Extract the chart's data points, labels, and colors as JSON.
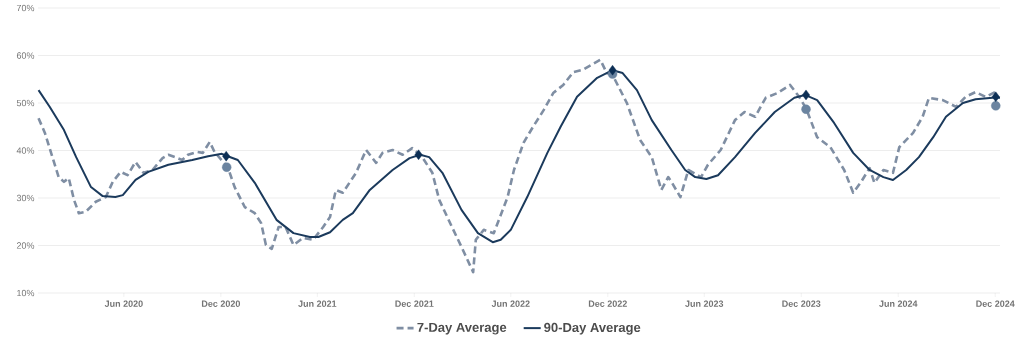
{
  "chart_data": {
    "type": "line",
    "xlim": [
      "2019-12-22",
      "2024-12-10"
    ],
    "xticks": [
      {
        "value": "2020-06-01",
        "label": "Jun 2020"
      },
      {
        "value": "2020-12-01",
        "label": "Dec 2020"
      },
      {
        "value": "2021-06-01",
        "label": "Jun 2021"
      },
      {
        "value": "2021-12-01",
        "label": "Dec 2021"
      },
      {
        "value": "2022-06-01",
        "label": "Jun 2022"
      },
      {
        "value": "2022-12-01",
        "label": "Dec 2022"
      },
      {
        "value": "2023-06-01",
        "label": "Jun 2023"
      },
      {
        "value": "2023-12-01",
        "label": "Dec 2023"
      },
      {
        "value": "2024-06-01",
        "label": "Jun 2024"
      },
      {
        "value": "2024-12-01",
        "label": "Dec 2024"
      }
    ],
    "ylim": [
      10,
      70
    ],
    "yticks": [
      {
        "value": 10,
        "label": "10%"
      },
      {
        "value": 20,
        "label": "20%"
      },
      {
        "value": 30,
        "label": "30%"
      },
      {
        "value": 40,
        "label": "40%"
      },
      {
        "value": 50,
        "label": "50%"
      },
      {
        "value": 60,
        "label": "60%"
      },
      {
        "value": 70,
        "label": "70%"
      }
    ],
    "grid": "y",
    "legend": "bottom",
    "series": [
      {
        "name": "7-Day Average",
        "color": "#7f8ea3",
        "line_style": "dashed",
        "marker": "none",
        "x": [
          "2019-12-23",
          "2020-01-04",
          "2020-01-30",
          "2020-02-09",
          "2020-02-18",
          "2020-02-28",
          "2020-03-08",
          "2020-03-21",
          "2020-04-09",
          "2020-04-28",
          "2020-05-11",
          "2020-05-26",
          "2020-06-08",
          "2020-06-23",
          "2020-07-08",
          "2020-07-25",
          "2020-08-13",
          "2020-08-24",
          "2020-09-06",
          "2020-09-19",
          "2020-09-30",
          "2020-10-17",
          "2020-10-28",
          "2020-11-10",
          "2020-11-19",
          "2020-12-14",
          "2020-12-27",
          "2021-01-15",
          "2021-02-03",
          "2021-02-15",
          "2021-02-24",
          "2021-03-07",
          "2021-03-20",
          "2021-04-02",
          "2021-04-17",
          "2021-05-05",
          "2021-05-24",
          "2021-06-12",
          "2021-06-25",
          "2021-07-06",
          "2021-07-19",
          "2021-08-13",
          "2021-09-01",
          "2021-09-20",
          "2021-10-02",
          "2021-10-21",
          "2021-11-09",
          "2021-11-27",
          "2021-12-16",
          "2022-01-04",
          "2022-01-17",
          "2022-02-10",
          "2022-02-28",
          "2022-03-22",
          "2022-03-27",
          "2022-04-11",
          "2022-04-30",
          "2022-05-26",
          "2022-06-07",
          "2022-06-25",
          "2022-07-13",
          "2022-08-02",
          "2022-08-20",
          "2022-09-08",
          "2022-09-27",
          "2022-10-15",
          "2022-11-17",
          "2022-11-29",
          "2022-12-10",
          "2023-01-06",
          "2023-01-31",
          "2023-02-22",
          "2023-03-12",
          "2023-03-25",
          "2023-03-31",
          "2023-04-17",
          "2023-05-02",
          "2023-05-26",
          "2023-06-08",
          "2023-07-02",
          "2023-07-29",
          "2023-08-16",
          "2023-09-05",
          "2023-09-25",
          "2023-10-17",
          "2023-11-10",
          "2023-11-27",
          "2023-12-10",
          "2023-12-31",
          "2024-01-25",
          "2024-02-20",
          "2024-03-08",
          "2024-03-23",
          "2024-04-08",
          "2024-04-17",
          "2024-05-04",
          "2024-05-22",
          "2024-06-03",
          "2024-06-29",
          "2024-07-17",
          "2024-07-29",
          "2024-08-24",
          "2024-09-18",
          "2024-10-06",
          "2024-10-25",
          "2024-11-13",
          "2024-12-01"
        ],
        "values": [
          46.8,
          43.7,
          34.4,
          33.4,
          34.2,
          29.6,
          26.8,
          27.1,
          29.2,
          30.2,
          33.4,
          35.5,
          34.8,
          37.6,
          35.3,
          35.9,
          38.4,
          39.1,
          38.6,
          38.0,
          39.1,
          39.7,
          39.5,
          41.8,
          39.7,
          36.5,
          32.3,
          28.1,
          26.8,
          24.7,
          20.1,
          19.3,
          23.9,
          23.9,
          20.1,
          21.6,
          21.2,
          23.9,
          26.0,
          31.7,
          31.1,
          35.3,
          40.1,
          37.4,
          39.5,
          40.1,
          39.1,
          40.5,
          38.6,
          35.3,
          29.6,
          23.9,
          19.7,
          14.4,
          21.2,
          23.3,
          22.6,
          30.2,
          35.9,
          41.6,
          45.0,
          48.5,
          52.1,
          53.8,
          56.5,
          57.0,
          59.1,
          56.3,
          55.9,
          50.0,
          42.2,
          38.6,
          31.7,
          34.4,
          33.4,
          30.2,
          35.9,
          34.4,
          37.0,
          40.1,
          46.4,
          48.1,
          47.1,
          51.1,
          52.1,
          53.8,
          51.3,
          48.9,
          42.8,
          40.7,
          35.9,
          31.1,
          33.4,
          36.3,
          33.2,
          35.9,
          35.3,
          40.7,
          43.7,
          47.1,
          51.1,
          50.6,
          49.2,
          51.3,
          52.3,
          51.3,
          52.3
        ]
      },
      {
        "name": "90-Day Average",
        "color": "#1b3a5c",
        "line_style": "solid",
        "marker": "none",
        "x": [
          "2019-12-23",
          "2020-01-13",
          "2020-02-09",
          "2020-03-03",
          "2020-03-31",
          "2020-04-22",
          "2020-05-16",
          "2020-05-30",
          "2020-06-23",
          "2020-07-17",
          "2020-08-24",
          "2020-09-19",
          "2020-10-08",
          "2020-11-07",
          "2020-12-03",
          "2020-12-14",
          "2021-01-02",
          "2021-02-03",
          "2021-03-16",
          "2021-04-17",
          "2021-05-18",
          "2021-06-03",
          "2021-06-25",
          "2021-07-19",
          "2021-08-07",
          "2021-09-08",
          "2021-10-21",
          "2021-11-22",
          "2021-12-12",
          "2021-12-29",
          "2022-01-23",
          "2022-02-28",
          "2022-03-31",
          "2022-04-28",
          "2022-05-13",
          "2022-06-01",
          "2022-07-02",
          "2022-08-09",
          "2022-09-03",
          "2022-10-04",
          "2022-11-11",
          "2022-12-10",
          "2022-12-29",
          "2023-01-25",
          "2023-02-22",
          "2023-03-31",
          "2023-04-26",
          "2023-05-15",
          "2023-06-05",
          "2023-06-27",
          "2023-07-29",
          "2023-09-05",
          "2023-10-12",
          "2023-11-18",
          "2023-12-08",
          "2023-12-31",
          "2024-02-01",
          "2024-03-08",
          "2024-04-08",
          "2024-05-04",
          "2024-05-22",
          "2024-06-16",
          "2024-07-10",
          "2024-08-06",
          "2024-08-30",
          "2024-10-01",
          "2024-10-25",
          "2024-11-26",
          "2024-12-10"
        ],
        "values": [
          52.7,
          49.2,
          44.3,
          38.6,
          32.3,
          30.4,
          30.2,
          30.6,
          33.8,
          35.5,
          37.0,
          37.6,
          38.0,
          38.8,
          39.3,
          38.8,
          38.0,
          33.2,
          25.4,
          22.6,
          21.8,
          21.8,
          22.8,
          25.4,
          26.8,
          31.7,
          35.9,
          38.4,
          39.1,
          38.6,
          35.3,
          27.5,
          22.6,
          20.7,
          21.2,
          23.3,
          30.2,
          39.5,
          45.0,
          51.3,
          55.3,
          56.9,
          56.3,
          52.7,
          46.4,
          40.1,
          35.9,
          34.4,
          34.0,
          34.8,
          38.6,
          43.7,
          48.1,
          51.1,
          51.7,
          50.6,
          45.8,
          39.5,
          35.9,
          34.4,
          33.8,
          35.9,
          38.6,
          42.8,
          47.1,
          50.0,
          50.8,
          51.1,
          51.1
        ]
      },
      {
        "type": "scatter",
        "color": "#6b84a0",
        "marker": "circle",
        "x": [
          "2020-12-12",
          "2022-12-10",
          "2023-12-10",
          "2024-12-02"
        ],
        "values": [
          36.5,
          56.1,
          48.7,
          49.4
        ]
      },
      {
        "type": "scatter",
        "color": "#0d2f55",
        "marker": "diamond",
        "x": [
          "2020-12-11",
          "2021-12-09",
          "2022-12-10",
          "2023-12-10",
          "2024-12-02"
        ],
        "values": [
          38.8,
          39.1,
          56.9,
          51.7,
          51.3
        ]
      }
    ]
  }
}
